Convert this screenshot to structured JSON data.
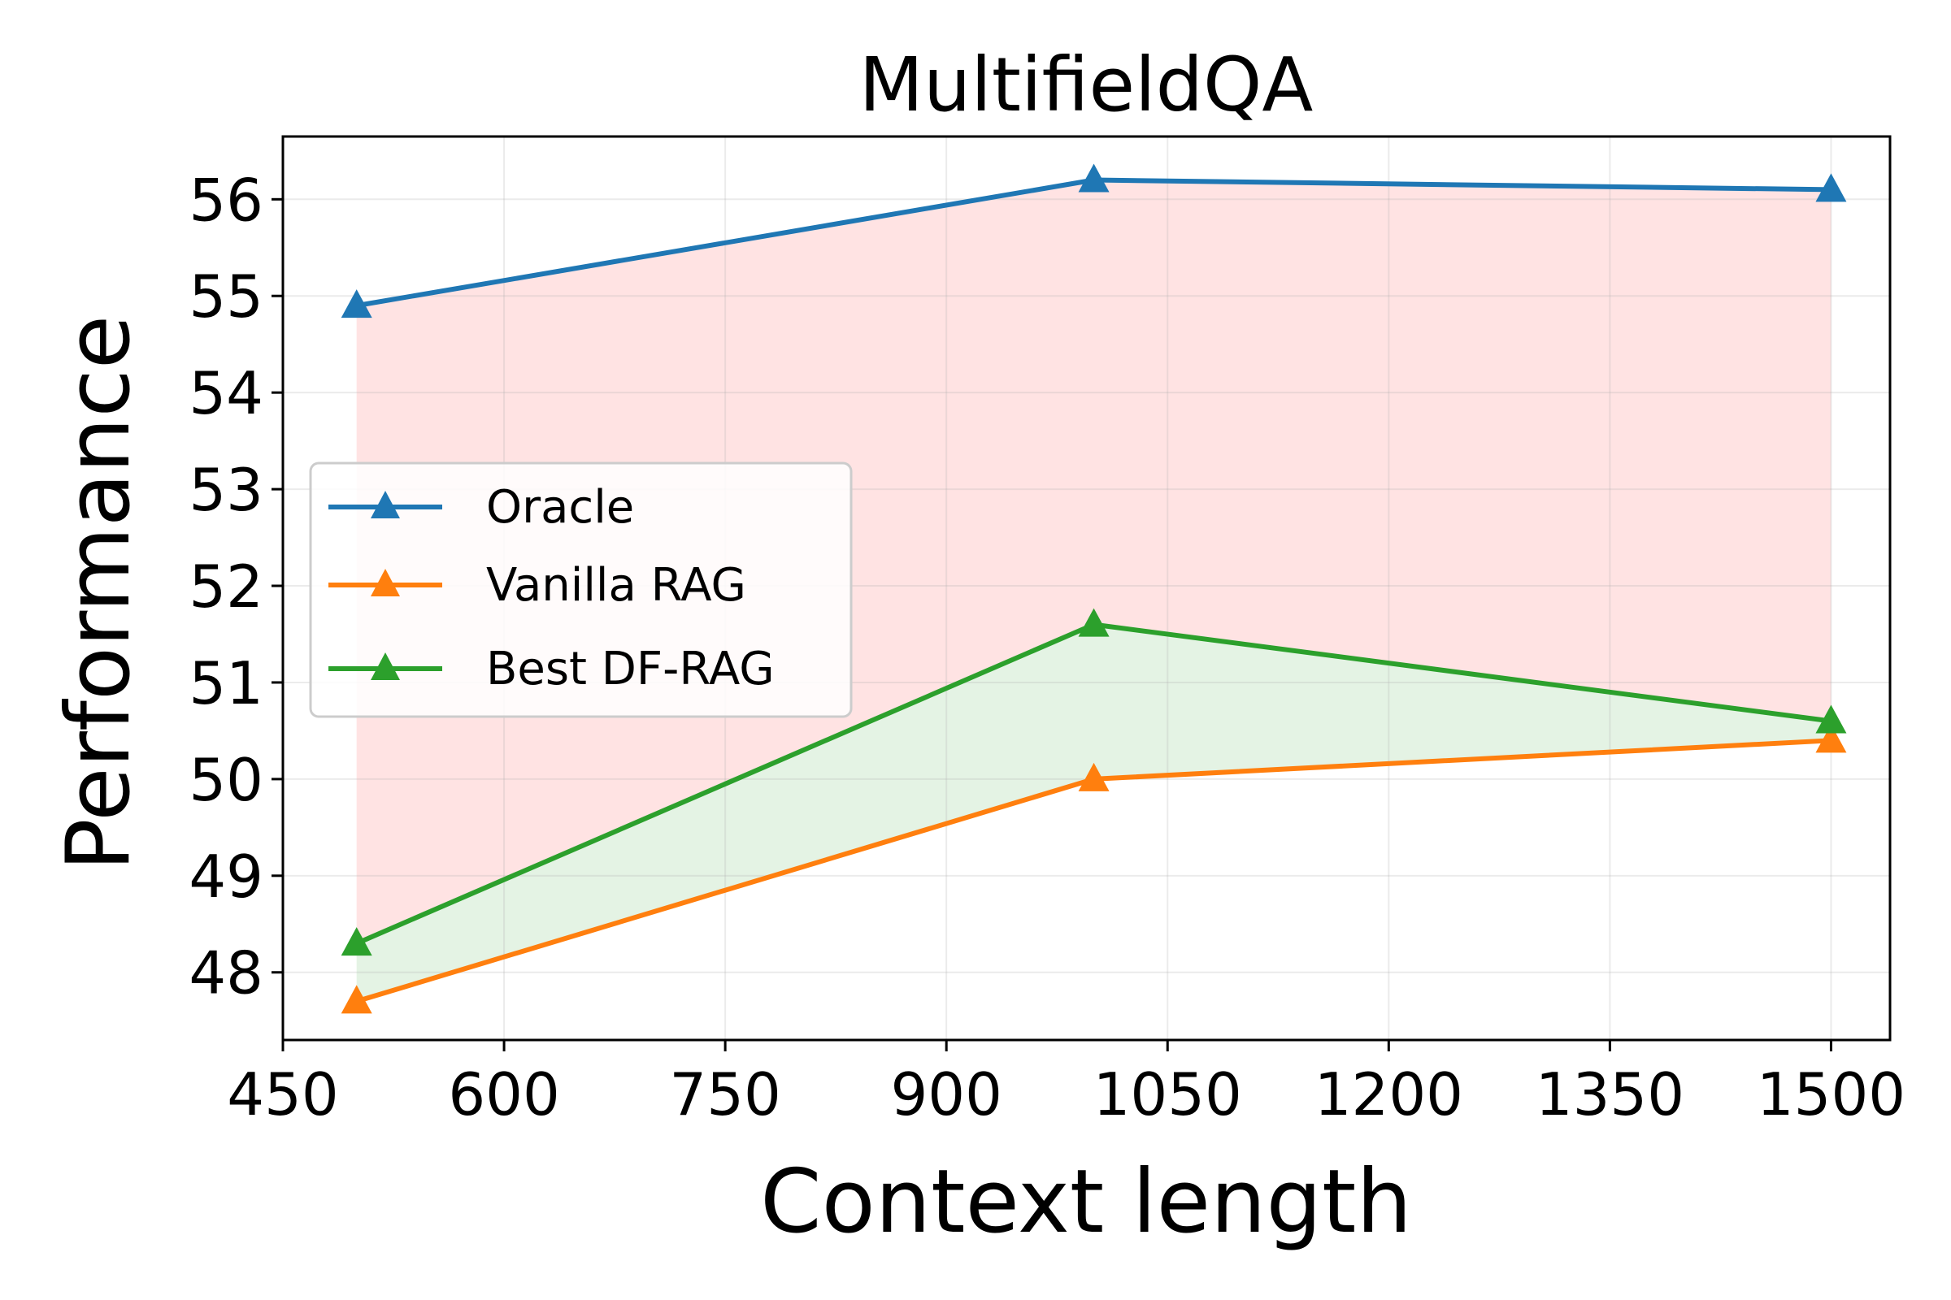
{
  "chart_data": {
    "type": "line",
    "title": "MultifieldQA",
    "xlabel": "Context length",
    "ylabel": "Performance",
    "x": [
      500,
      1000,
      1500
    ],
    "xlim": [
      450,
      1540
    ],
    "ylim": [
      47.3,
      56.65
    ],
    "xticks": [
      "450",
      "600",
      "750",
      "900",
      "1050",
      "1200",
      "1350",
      "1500"
    ],
    "yticks": [
      "48",
      "49",
      "50",
      "51",
      "52",
      "53",
      "54",
      "55",
      "56"
    ],
    "grid": true,
    "legend_position": "center-left",
    "series": [
      {
        "name": "Oracle",
        "values": [
          54.9,
          56.2,
          56.1
        ],
        "color": "#1f77b4",
        "marker": "triangle"
      },
      {
        "name": "Vanilla RAG",
        "values": [
          47.7,
          50.0,
          50.4
        ],
        "color": "#ff7f0e",
        "marker": "triangle"
      },
      {
        "name": "Best DF-RAG",
        "values": [
          48.3,
          51.6,
          50.6
        ],
        "color": "#2ca02c",
        "marker": "triangle"
      }
    ],
    "fills": [
      {
        "between": [
          "Best DF-RAG",
          "Oracle"
        ],
        "color": "#ff0000",
        "opacity": 0.11
      },
      {
        "between": [
          "Vanilla RAG",
          "Best DF-RAG"
        ],
        "color": "#2ca02c",
        "opacity": 0.13
      }
    ]
  }
}
